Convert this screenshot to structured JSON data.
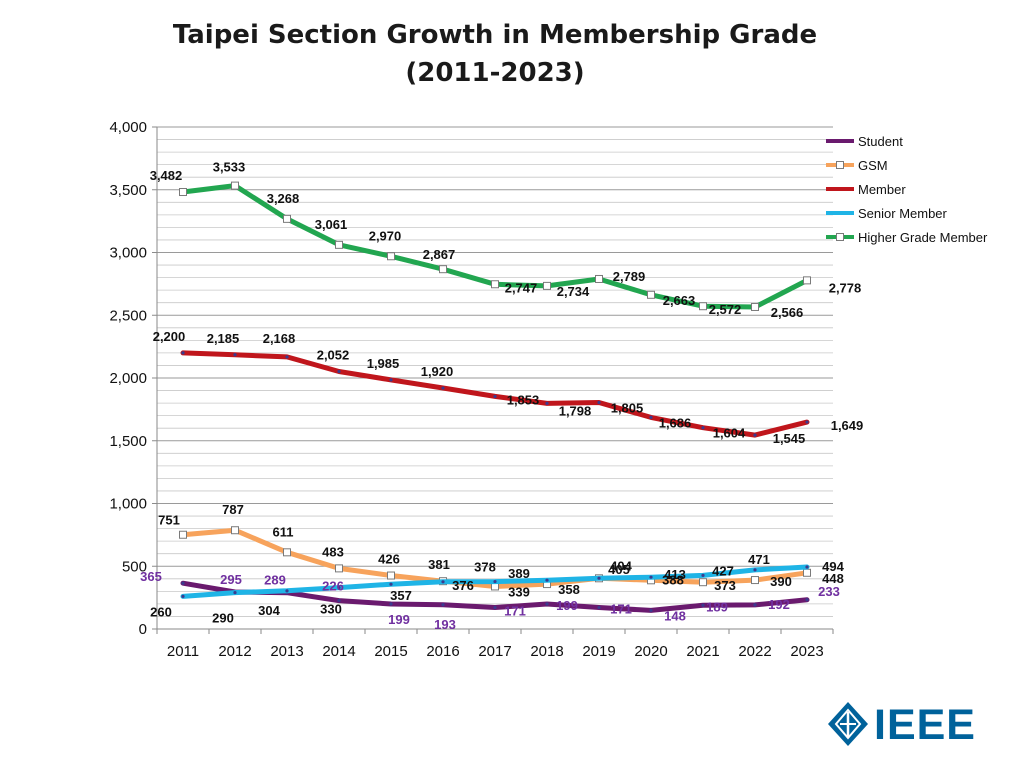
{
  "chart_data": {
    "type": "line",
    "title_line1": "Taipei Section Growth in Membership Grade",
    "title_line2": "(2011-2023)",
    "xlabel": "",
    "ylabel": "",
    "ylim": [
      0,
      4000
    ],
    "y_ticks": [
      0,
      500,
      1000,
      1500,
      2000,
      2500,
      3000,
      3500,
      4000
    ],
    "y_tick_labels": [
      "0",
      "500",
      "1,000",
      "1,500",
      "2,000",
      "2,500",
      "3,000",
      "3,500",
      "4,000"
    ],
    "grid": true,
    "legend_position": "top-right",
    "categories": [
      "2011",
      "2012",
      "2013",
      "2014",
      "2015",
      "2016",
      "2017",
      "2018",
      "2019",
      "2020",
      "2021",
      "2022",
      "2023"
    ],
    "series": [
      {
        "name": "Student",
        "color": "#6a1a6e",
        "label_color": "#7030a0",
        "marker": "none",
        "values": [
          365,
          295,
          289,
          226,
          199,
          193,
          171,
          199,
          171,
          148,
          189,
          192,
          233
        ],
        "labels": [
          "365",
          "295",
          "289",
          "226",
          "199",
          "193",
          "171",
          "199",
          "171",
          "148",
          "189",
          "192",
          "233"
        ]
      },
      {
        "name": "GSM",
        "color": "#f7a35c",
        "label_color": "#111111",
        "marker": "square",
        "values": [
          751,
          787,
          611,
          483,
          426,
          381,
          339,
          358,
          404,
          388,
          373,
          390,
          448
        ],
        "labels": [
          "751",
          "787",
          "611",
          "483",
          "426",
          "381",
          "339",
          "358",
          "404",
          "388",
          "373",
          "390",
          "448"
        ]
      },
      {
        "name": "Member",
        "color": "#c0161c",
        "label_color": "#111111",
        "marker": "none",
        "values": [
          2200,
          2185,
          2168,
          2052,
          1985,
          1920,
          1853,
          1798,
          1805,
          1686,
          1604,
          1545,
          1649
        ],
        "labels": [
          "2,200",
          "2,185",
          "2,168",
          "2,052",
          "1,985",
          "1,920",
          "1,853",
          "1,798",
          "1,805",
          "1,686",
          "1,604",
          "1,545",
          "1,649"
        ]
      },
      {
        "name": "Senior Member",
        "color": "#1fb4e6",
        "label_color": "#111111",
        "marker": "none",
        "values": [
          260,
          290,
          304,
          330,
          357,
          376,
          378,
          389,
          405,
          413,
          427,
          471,
          494
        ],
        "labels": [
          "260",
          "290",
          "304",
          "330",
          "357",
          "376",
          "378",
          "389",
          "405",
          "413",
          "427",
          "471",
          "494"
        ]
      },
      {
        "name": "Higher Grade Member",
        "color": "#22a650",
        "label_color": "#111111",
        "marker": "square",
        "values": [
          3482,
          3533,
          3268,
          3061,
          2970,
          2867,
          2747,
          2734,
          2789,
          2663,
          2572,
          2566,
          2778
        ],
        "labels": [
          "3,482",
          "3,533",
          "3,268",
          "3,061",
          "2,970",
          "2,867",
          "2,747",
          "2,734",
          "2,789",
          "2,663",
          "2,572",
          "2,566",
          "2,778"
        ]
      }
    ]
  },
  "logo": {
    "text": "IEEE",
    "color": "#00629b"
  }
}
